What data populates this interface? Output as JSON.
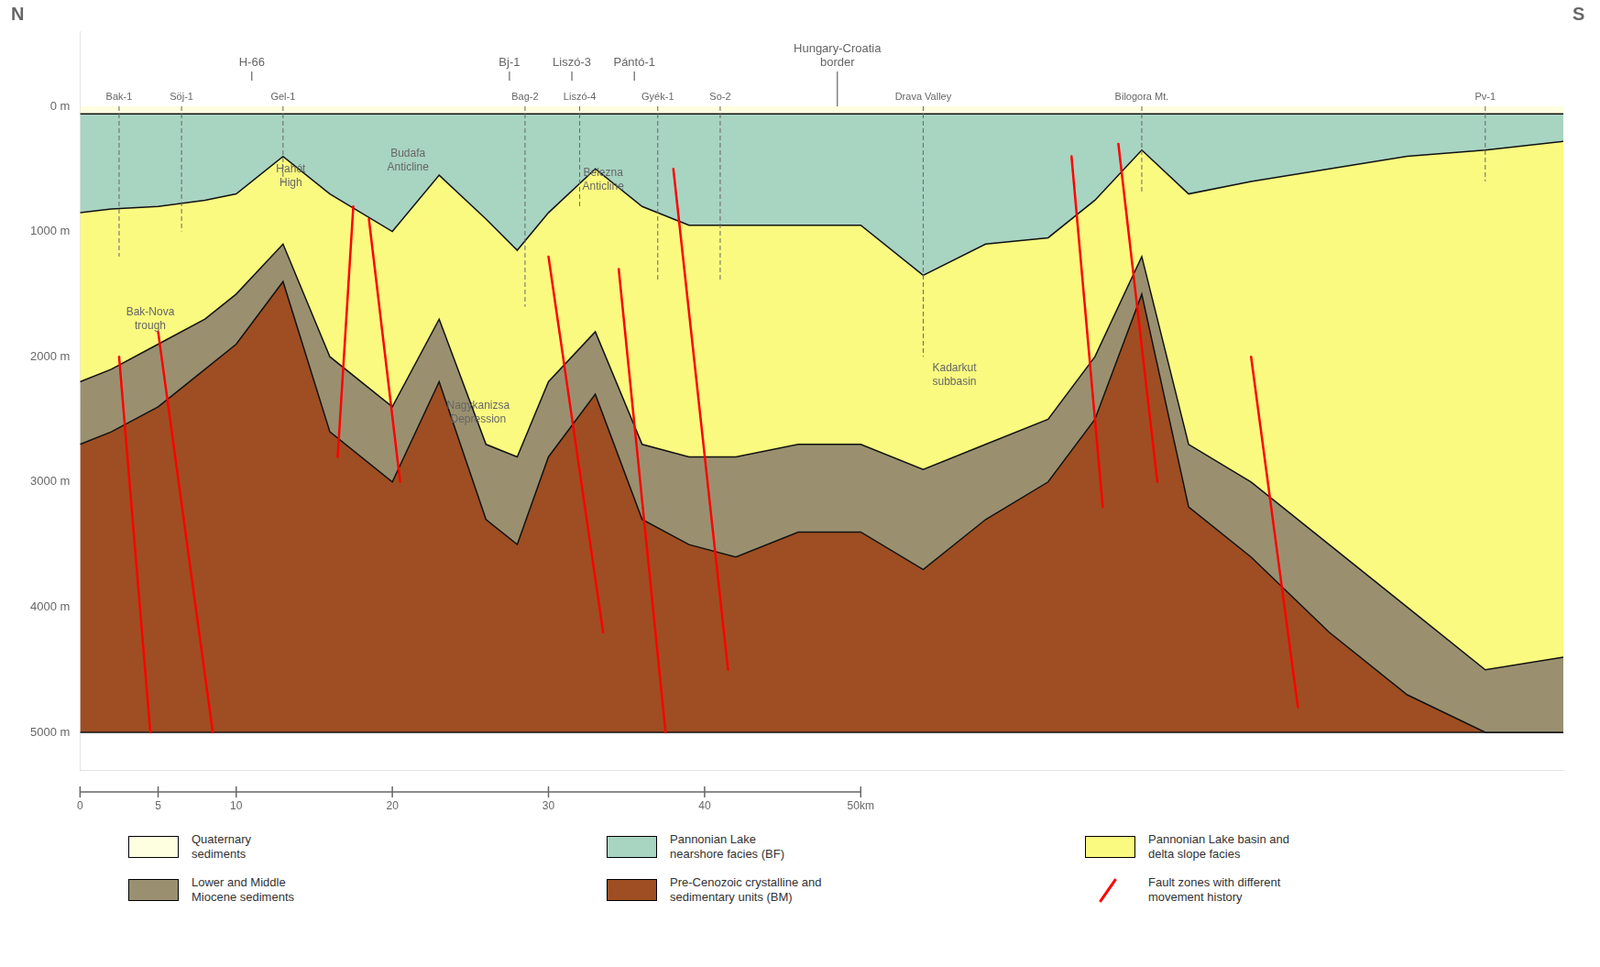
{
  "chart_data": {
    "type": "area",
    "x": [
      0,
      2,
      5,
      8,
      10,
      13,
      16,
      20,
      23,
      26,
      28,
      30,
      33,
      36,
      39,
      42,
      46,
      50,
      54,
      58,
      62,
      65,
      68,
      71,
      75,
      80,
      85,
      90,
      95
    ],
    "xlim": [
      0,
      95
    ],
    "ylim": [
      5300,
      -600
    ],
    "yticks": [
      {
        "value": 0,
        "label": "0 m"
      },
      {
        "value": 1000,
        "label": "1000 m"
      },
      {
        "value": 2000,
        "label": "2000 m"
      },
      {
        "value": 3000,
        "label": "3000 m"
      },
      {
        "value": 4000,
        "label": "4000 m"
      },
      {
        "value": 5000,
        "label": "5000 m"
      }
    ],
    "tick_labels": "y",
    "grid": false,
    "legend": "bottom",
    "outline_color": "#111111",
    "series": [
      {
        "name": "Quaternary\nsediments",
        "color": "#FEFEE0",
        "values": [
          60,
          60,
          60,
          60,
          60,
          60,
          60,
          60,
          60,
          60,
          60,
          60,
          60,
          60,
          60,
          60,
          60,
          60,
          60,
          60,
          60,
          60,
          60,
          60,
          60,
          60,
          60,
          60,
          60
        ]
      },
      {
        "name": "Pannonian Lake\nnearshore facies (BF)",
        "color": "#A8D4C2",
        "values": [
          850,
          820,
          800,
          750,
          700,
          400,
          700,
          1000,
          550,
          900,
          1150,
          850,
          500,
          800,
          950,
          950,
          950,
          950,
          1350,
          1100,
          1050,
          750,
          350,
          700,
          600,
          500,
          400,
          350,
          280
        ]
      },
      {
        "name": "Pannonian Lake basin and\ndelta slope facies",
        "color": "#FAFA80",
        "values": [
          2200,
          2100,
          1900,
          1700,
          1500,
          1100,
          2000,
          2400,
          1700,
          2700,
          2800,
          2200,
          1800,
          2700,
          2800,
          2800,
          2700,
          2700,
          2900,
          2700,
          2500,
          2000,
          1200,
          2700,
          3000,
          3500,
          4000,
          4500,
          4400
        ]
      },
      {
        "name": "Lower and Middle\nMiocene sediments",
        "color": "#9A9070",
        "values": [
          2700,
          2600,
          2400,
          2100,
          1900,
          1400,
          2600,
          3000,
          2200,
          3300,
          3500,
          2800,
          2300,
          3300,
          3500,
          3600,
          3400,
          3400,
          3700,
          3300,
          3000,
          2500,
          1500,
          3200,
          3600,
          4200,
          4700,
          5000,
          5000
        ]
      },
      {
        "name": "Pre-Cenozoic crystalline and\nsedimentary units (BM)",
        "color": "#9E4E22",
        "values": [
          5000,
          5000,
          5000,
          5000,
          5000,
          5000,
          5000,
          5000,
          5000,
          5000,
          5000,
          5000,
          5000,
          5000,
          5000,
          5000,
          5000,
          5000,
          5000,
          5000,
          5000,
          5000,
          5000,
          5000,
          5000,
          5000,
          5000,
          5000,
          5000
        ]
      },
      {
        "name": "Fault zones with different\nmovement history",
        "color": "#FF0000",
        "type": "line",
        "x": [
          2.5,
          4.5,
          null,
          5.0,
          8.5,
          null,
          17.5,
          16.5,
          null,
          18.5,
          20.5,
          null,
          30.0,
          33.5,
          null,
          34.5,
          37.5,
          null,
          38.0,
          41.5,
          null,
          63.5,
          65.5,
          null,
          66.5,
          69.0,
          null,
          75.0,
          78.0
        ],
        "values": [
          2000,
          5000,
          null,
          1800,
          5000,
          null,
          800,
          2800,
          null,
          900,
          3000,
          null,
          1200,
          4200,
          null,
          1300,
          5000,
          null,
          500,
          4500,
          null,
          400,
          3200,
          null,
          300,
          3000,
          null,
          2000,
          4800
        ]
      }
    ],
    "wells": [
      {
        "label": "Bak-1",
        "x": 2.5,
        "values": [
          0,
          1200
        ]
      },
      {
        "label": "Söj-1",
        "x": 6.5,
        "values": [
          0,
          1000
        ]
      },
      {
        "label": "Gel-1",
        "x": 13,
        "values": [
          0,
          600
        ]
      },
      {
        "label": "Bag-2",
        "x": 28.5,
        "values": [
          0,
          1600
        ]
      },
      {
        "label": "Liszó-4",
        "x": 32,
        "values": [
          0,
          800
        ]
      },
      {
        "label": "Gyék-1",
        "x": 37,
        "values": [
          0,
          1400
        ]
      },
      {
        "label": "So-2",
        "x": 41,
        "values": [
          0,
          1400
        ]
      },
      {
        "label": "Drava Valley",
        "x": 54,
        "values": [
          0,
          2000
        ]
      },
      {
        "label": "Bilogora Mt.",
        "x": 68,
        "values": [
          0,
          700
        ]
      },
      {
        "label": "Pv-1",
        "x": 90,
        "values": [
          0,
          600
        ]
      }
    ],
    "groups": [
      {
        "label": "H-66",
        "x": 11
      },
      {
        "label": "Bj-1",
        "x": 27.5
      },
      {
        "label": "Liszó-3",
        "x": 31.5
      },
      {
        "label": "Pántó-1",
        "x": 35.5
      }
    ],
    "border": {
      "label": "Hungary-Croatia\nborder",
      "x": 48.5
    },
    "annotations": [
      {
        "text": "Hahót\nHigh",
        "x": 13.5,
        "y": 560
      },
      {
        "text": "Budafa\nAnticline",
        "x": 21.0,
        "y": 430
      },
      {
        "text": "Belezna\nAnticline",
        "x": 33.5,
        "y": 590
      },
      {
        "text": "Bak-Nova\ntrough",
        "x": 4.5,
        "y": 1700
      },
      {
        "text": "Nagykanizsa\nDepression",
        "x": 25.5,
        "y": 2450
      },
      {
        "text": "Kadarkut\nsubbasin",
        "x": 56.0,
        "y": 2150
      }
    ],
    "direction_labels": [
      "N",
      "S"
    ],
    "scale_bar": {
      "ticks": [
        0,
        5,
        10,
        20,
        30,
        40,
        {
          "value": 50,
          "label": "50km"
        }
      ]
    }
  }
}
